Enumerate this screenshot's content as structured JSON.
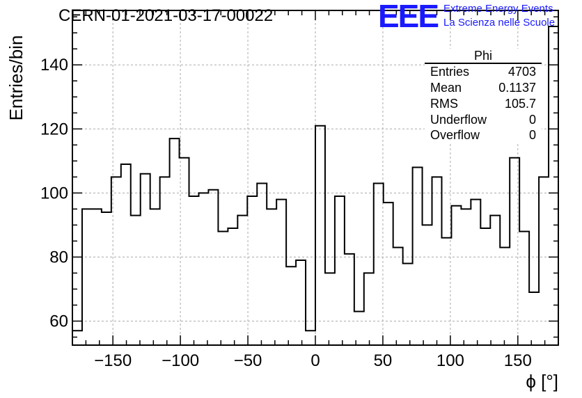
{
  "header": {
    "run_title": "CERN-01-2021-03-17-00022",
    "logo_text": "EEE",
    "logo_line1": "Extreme Energy Events",
    "logo_line2": "La Scienza nelle Scuole",
    "brand_color": "#1a1aff"
  },
  "stats": {
    "title": "Phi",
    "rows": [
      {
        "key": "Entries",
        "value": "4703"
      },
      {
        "key": "Mean",
        "value": "0.1137"
      },
      {
        "key": "RMS",
        "value": "105.7"
      },
      {
        "key": "Underflow",
        "value": "0"
      },
      {
        "key": "Overflow",
        "value": "0"
      }
    ]
  },
  "chart_data": {
    "type": "histogram",
    "title": "CERN-01-2021-03-17-00022",
    "xlabel": "ϕ [°]",
    "ylabel": "Entries/bin",
    "xlim": [
      -180,
      180
    ],
    "ylim": [
      52.5,
      157
    ],
    "xticks": [
      -150,
      -100,
      -50,
      0,
      50,
      100,
      150
    ],
    "xtick_labels": [
      "−150",
      "−100",
      "−50",
      "0",
      "50",
      "100",
      "150"
    ],
    "yticks": [
      60,
      80,
      100,
      120,
      140
    ],
    "ytick_labels": [
      "60",
      "80",
      "100",
      "120",
      "140"
    ],
    "grid": true,
    "bin_edges_start": -180,
    "bin_width": 7.2,
    "values": [
      57,
      95,
      95,
      94,
      105,
      109,
      93,
      106,
      95,
      105,
      117,
      111,
      99,
      100,
      101,
      88,
      89,
      93,
      99,
      103,
      95,
      98,
      77,
      79,
      57,
      121,
      75,
      99,
      81,
      63,
      75,
      103,
      97,
      83,
      78,
      108,
      90,
      105,
      86,
      96,
      95,
      98,
      89,
      93,
      83,
      111,
      88,
      69,
      105,
      152
    ],
    "line_color": "#000000",
    "grid_color": "#aaaaaa"
  }
}
